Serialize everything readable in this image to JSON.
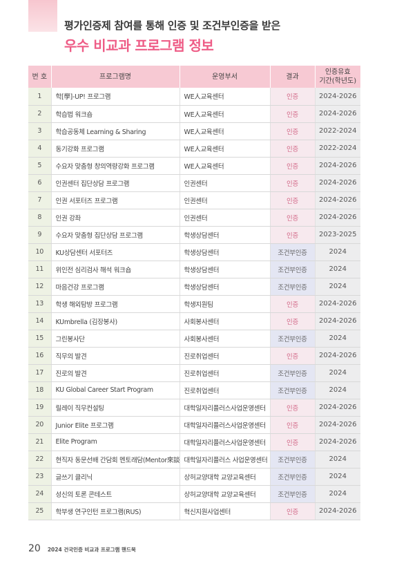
{
  "header": {
    "line1": "평가인증제 참여를 통해 인증 및 조건부인증을 받은",
    "line2": "우수 비교과 프로그램 정보"
  },
  "table": {
    "headers": [
      "번 호",
      "프로그램명",
      "운영부서",
      "결과",
      "인증유효\n기간(학년도)"
    ],
    "rows": [
      [
        "1",
        "학[學]-UP! 프로그램",
        "WE人교육센터",
        "인증",
        "2024-2026"
      ],
      [
        "2",
        "학습법 워크숍",
        "WE人교육센터",
        "인증",
        "2024-2026"
      ],
      [
        "3",
        "학습공동체 Learning & Sharing",
        "WE人교육센터",
        "인증",
        "2022-2024"
      ],
      [
        "4",
        "동기강화 프로그램",
        "WE人교육센터",
        "인증",
        "2022-2024"
      ],
      [
        "5",
        "수요자 맞춤형 창의역량강화 프로그램",
        "WE人교육센터",
        "인증",
        "2024-2026"
      ],
      [
        "6",
        "인권센터 집단상담 프로그램",
        "인권센터",
        "인증",
        "2024-2026"
      ],
      [
        "7",
        "인권 서포터즈 프로그램",
        "인권센터",
        "인증",
        "2024-2026"
      ],
      [
        "8",
        "인권 강좌",
        "인권센터",
        "인증",
        "2024-2026"
      ],
      [
        "9",
        "수요자 맞춤형 집단상담 프로그램",
        "학생상담센터",
        "인증",
        "2023-2025"
      ],
      [
        "10",
        "KU상담센터 서포터즈",
        "학생상담센터",
        "조건부인증",
        "2024"
      ],
      [
        "11",
        "위인전 심리검사 해석 워크숍",
        "학생상담센터",
        "조건부인증",
        "2024"
      ],
      [
        "12",
        "마음건강 프로그램",
        "학생상담센터",
        "조건부인증",
        "2024"
      ],
      [
        "13",
        "학생 해외탐방 프로그램",
        "학생지원팀",
        "인증",
        "2024-2026"
      ],
      [
        "14",
        "KUmbrella (김장봉사)",
        "사회봉사센터",
        "인증",
        "2024-2026"
      ],
      [
        "15",
        "그린봉사단",
        "사회봉사센터",
        "조건부인증",
        "2024"
      ],
      [
        "16",
        "직무의 발견",
        "진로취업센터",
        "인증",
        "2024-2026"
      ],
      [
        "17",
        "진로의 발견",
        "진로취업센터",
        "조건부인증",
        "2024"
      ],
      [
        "18",
        "KU Global Career Start Program",
        "진로취업센터",
        "조건부인증",
        "2024"
      ],
      [
        "19",
        "릴레이 직무컨설팅",
        "대학일자리플러스사업운영센터",
        "인증",
        "2024-2026"
      ],
      [
        "20",
        "Junior Elite 프로그램",
        "대학일자리플러스사업운영센터",
        "인증",
        "2024-2026"
      ],
      [
        "21",
        "Elite Program",
        "대학일자리플러스사업운영센터",
        "인증",
        "2024-2026"
      ],
      [
        "22",
        "현직자 동문선배 간담회 멘토래담(Mentor來談)",
        "대학일자리플러스 사업운영센터",
        "조건부인증",
        "2024"
      ],
      [
        "23",
        "글쓰기 클리닉",
        "상허교양대학 교양교육센터",
        "조건부인증",
        "2024"
      ],
      [
        "24",
        "성신의 토론 콘테스트",
        "상허교양대학 교양교육센터",
        "조건부인증",
        "2024"
      ],
      [
        "25",
        "학부생 연구인턴 프로그램(RUS)",
        "혁신지원사업센터",
        "인증",
        "2024-2026"
      ]
    ]
  },
  "footer": {
    "page_number": "20",
    "text": "2024 건국인증 비교과 프로그램 핸드북"
  },
  "colors": {
    "accent": "#ee5c86",
    "header_bg": "#f7c9d3",
    "no_col_bg": "#eef2e4",
    "certified_bg": "#f7e9ee",
    "conditional_bg": "#e4e6f3",
    "period_bg": "#ededee"
  }
}
